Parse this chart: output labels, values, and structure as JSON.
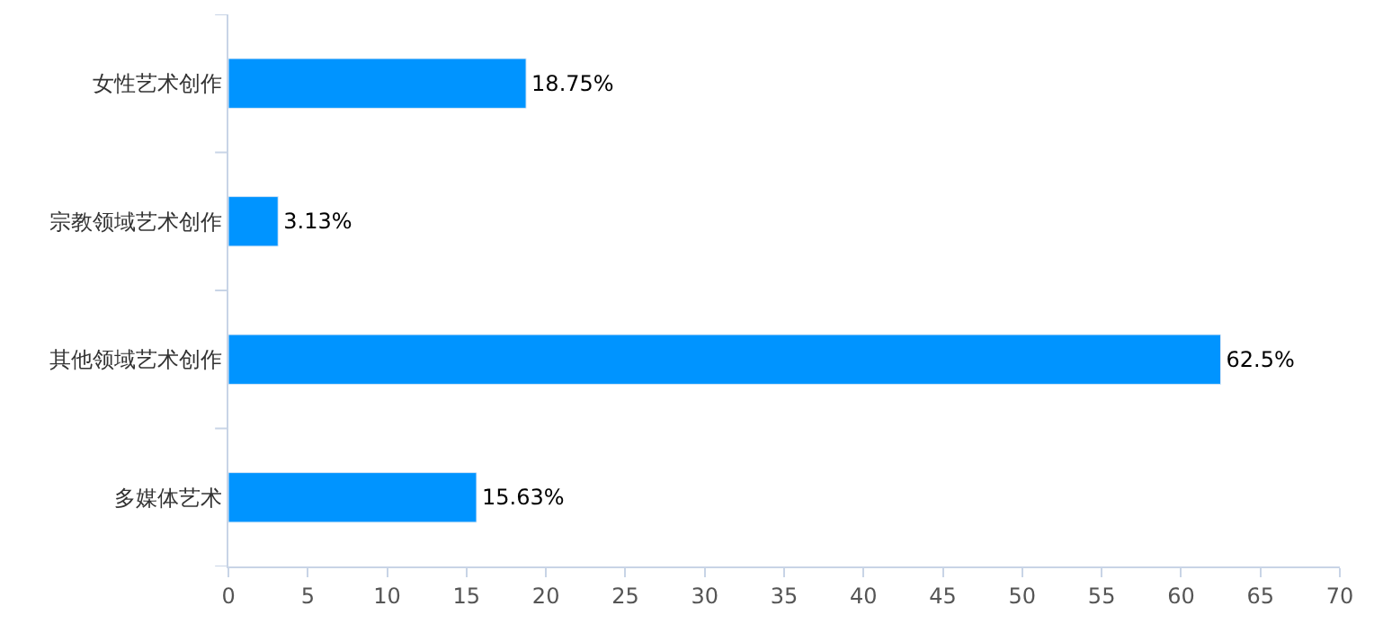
{
  "chart_data": {
    "type": "bar",
    "orientation": "horizontal",
    "categories": [
      "女性艺术创作",
      "宗教领域艺术创作",
      "其他领域艺术创作",
      "多媒体艺术"
    ],
    "values": [
      18.75,
      3.13,
      62.5,
      15.63
    ],
    "value_labels": [
      "18.75%",
      "3.13%",
      "62.5%",
      "15.63%"
    ],
    "color": "#0094ff",
    "xlim": [
      0,
      70
    ],
    "xticks": [
      0,
      5,
      10,
      15,
      20,
      25,
      30,
      35,
      40,
      45,
      50,
      55,
      60,
      65,
      70
    ]
  }
}
